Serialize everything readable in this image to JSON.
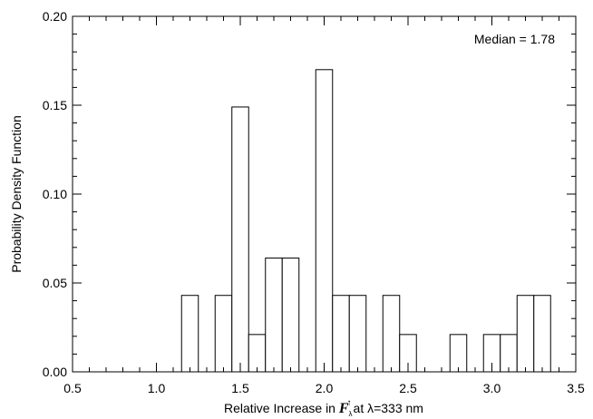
{
  "chart_data": {
    "type": "bar",
    "title": "",
    "xlabel": {
      "prefix": "Relative Increase in ",
      "symbol": "F",
      "sub": "λ",
      "sup": "↑",
      "suffix": "at λ=333 nm"
    },
    "ylabel": "Probability Density Function",
    "xlim": [
      0.5,
      3.5
    ],
    "ylim": [
      0.0,
      0.2
    ],
    "xticks": [
      "0.5",
      "1.0",
      "1.5",
      "2.0",
      "2.5",
      "3.0",
      "3.5"
    ],
    "yticks": [
      "0.00",
      "0.05",
      "0.10",
      "0.15",
      "0.20"
    ],
    "bin_width": 0.1,
    "bins": [
      {
        "x0": 1.15,
        "value": 0.043
      },
      {
        "x0": 1.35,
        "value": 0.043
      },
      {
        "x0": 1.45,
        "value": 0.149
      },
      {
        "x0": 1.55,
        "value": 0.021
      },
      {
        "x0": 1.65,
        "value": 0.064
      },
      {
        "x0": 1.75,
        "value": 0.064
      },
      {
        "x0": 1.95,
        "value": 0.17
      },
      {
        "x0": 2.05,
        "value": 0.043
      },
      {
        "x0": 2.15,
        "value": 0.043
      },
      {
        "x0": 2.35,
        "value": 0.043
      },
      {
        "x0": 2.45,
        "value": 0.021
      },
      {
        "x0": 2.75,
        "value": 0.021
      },
      {
        "x0": 2.95,
        "value": 0.021
      },
      {
        "x0": 3.05,
        "value": 0.021
      },
      {
        "x0": 3.15,
        "value": 0.043
      },
      {
        "x0": 3.25,
        "value": 0.043
      }
    ],
    "annotation": "Median = 1.78",
    "grid": false,
    "bar_fill": "#ffffff",
    "bar_stroke": "#000000"
  }
}
